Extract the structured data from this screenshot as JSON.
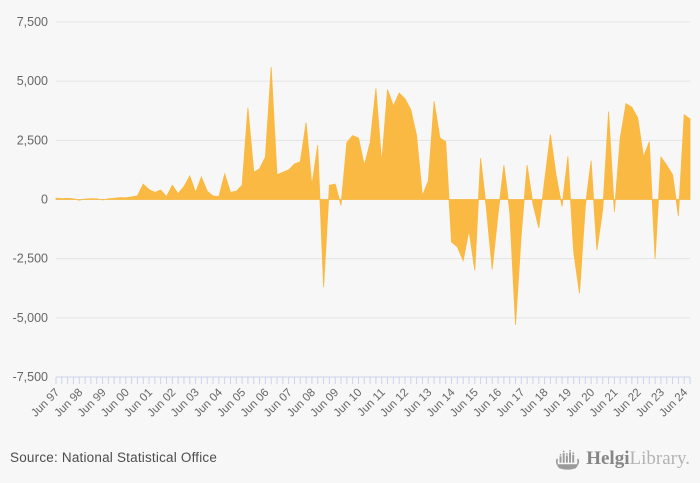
{
  "chart": {
    "background": "#f7f7f7",
    "colors": {
      "area": "#F9B942",
      "gridline": "#e4e4e4",
      "axis_line": "#cbd3ec",
      "tick": "#cbd3ec",
      "axis_text": "#666666"
    },
    "y_axis": {
      "labels": [
        "7,500",
        "5,000",
        "2,500",
        "0",
        "-2,500",
        "-5,000",
        "-7,500"
      ],
      "max": 7500,
      "min": -7500,
      "step": 2500
    },
    "x_axis": {
      "visible_labels": [
        "Jun 97",
        "Jun 98",
        "Jun 99",
        "Jun 00",
        "Jun 01",
        "Jun 02",
        "Jun 03",
        "Jun 04",
        "Jun 05",
        "Jun 06",
        "Jun 07",
        "Jun 08",
        "Jun 09",
        "Jun 10",
        "Jun 11",
        "Jun 12",
        "Jun 13",
        "Jun 14",
        "Jun 15",
        "Jun 16",
        "Jun 17",
        "Jun 18",
        "Jun 19",
        "Jun 20",
        "Jun 21",
        "Jun 22",
        "Jun 23",
        "Jun 24"
      ]
    }
  },
  "chart_data": {
    "type": "area",
    "title": "",
    "xlabel": "",
    "ylabel": "",
    "ylim": [
      -7500,
      7500
    ],
    "grid": "horizontal",
    "legend": "none",
    "frequency": "quarterly",
    "x": [
      "Jun 97",
      "Sep 97",
      "Dec 97",
      "Mar 98",
      "Jun 98",
      "Sep 98",
      "Dec 98",
      "Mar 99",
      "Jun 99",
      "Sep 99",
      "Dec 99",
      "Mar 00",
      "Jun 00",
      "Sep 00",
      "Dec 00",
      "Mar 01",
      "Jun 01",
      "Sep 01",
      "Dec 01",
      "Mar 02",
      "Jun 02",
      "Sep 02",
      "Dec 02",
      "Mar 03",
      "Jun 03",
      "Sep 03",
      "Dec 03",
      "Mar 04",
      "Jun 04",
      "Sep 04",
      "Dec 04",
      "Mar 05",
      "Jun 05",
      "Sep 05",
      "Dec 05",
      "Mar 06",
      "Jun 06",
      "Sep 06",
      "Dec 06",
      "Mar 07",
      "Jun 07",
      "Sep 07",
      "Dec 07",
      "Mar 08",
      "Jun 08",
      "Sep 08",
      "Dec 08",
      "Mar 09",
      "Jun 09",
      "Sep 09",
      "Dec 09",
      "Mar 10",
      "Jun 10",
      "Sep 10",
      "Dec 10",
      "Mar 11",
      "Jun 11",
      "Sep 11",
      "Dec 11",
      "Mar 12",
      "Jun 12",
      "Sep 12",
      "Dec 12",
      "Mar 13",
      "Jun 13",
      "Sep 13",
      "Dec 13",
      "Mar 14",
      "Jun 14",
      "Sep 14",
      "Dec 14",
      "Mar 15",
      "Jun 15",
      "Sep 15",
      "Dec 15",
      "Mar 16",
      "Jun 16",
      "Sep 16",
      "Dec 16",
      "Mar 17",
      "Jun 17",
      "Sep 17",
      "Dec 17",
      "Mar 18",
      "Jun 18",
      "Sep 18",
      "Dec 18",
      "Mar 19",
      "Jun 19",
      "Sep 19",
      "Dec 19",
      "Mar 20",
      "Jun 20",
      "Sep 20",
      "Dec 20",
      "Mar 21",
      "Jun 21",
      "Sep 21",
      "Dec 21",
      "Mar 22",
      "Jun 22",
      "Sep 22",
      "Dec 22",
      "Mar 23",
      "Jun 23",
      "Sep 23",
      "Dec 23",
      "Mar 24",
      "Jun 24",
      "Sep 24"
    ],
    "values": [
      60,
      40,
      50,
      30,
      -30,
      20,
      40,
      30,
      -20,
      30,
      50,
      80,
      70,
      110,
      150,
      650,
      420,
      300,
      400,
      120,
      600,
      250,
      550,
      1000,
      300,
      950,
      350,
      150,
      120,
      1080,
      300,
      350,
      600,
      3870,
      1150,
      1300,
      1800,
      5600,
      1050,
      1150,
      1250,
      1500,
      1600,
      3250,
      600,
      2300,
      -3700,
      600,
      650,
      -250,
      2400,
      2700,
      2600,
      1450,
      2400,
      4700,
      1550,
      4650,
      3950,
      4500,
      4250,
      3800,
      2700,
      150,
      800,
      4150,
      2600,
      2450,
      -1800,
      -2000,
      -2580,
      -1300,
      -3000,
      1750,
      -400,
      -2950,
      -600,
      1450,
      -500,
      -5300,
      -1450,
      1450,
      -200,
      -1200,
      800,
      2750,
      1000,
      -300,
      1820,
      -2230,
      -3960,
      -300,
      1640,
      -2140,
      -400,
      3720,
      -530,
      2600,
      4050,
      3900,
      3450,
      1800,
      2440,
      -2500,
      1800,
      1450,
      1050,
      -700,
      3580,
      3400
    ]
  },
  "footer": {
    "source": "Source: National Statistical Office",
    "logo": {
      "text_primary": "Helgi",
      "text_secondary": "Library",
      "suffix": "."
    }
  }
}
